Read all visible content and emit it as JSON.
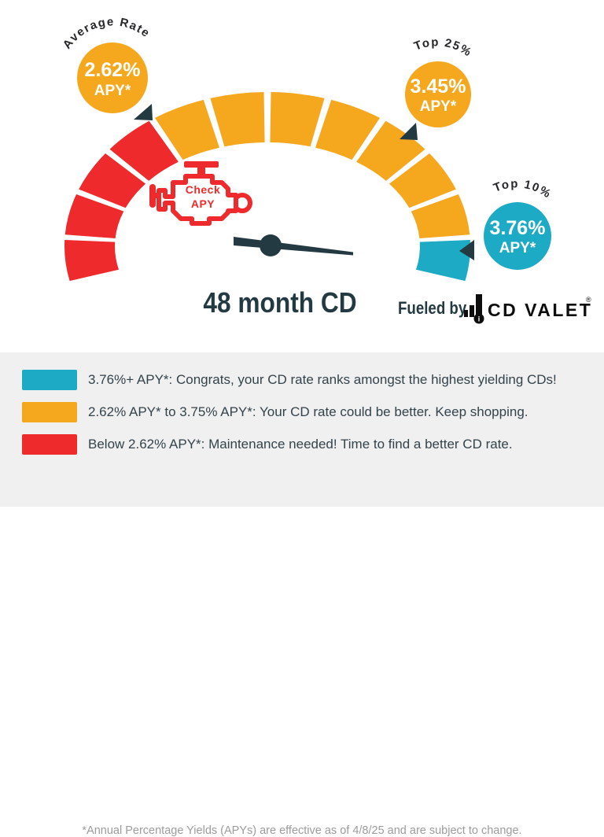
{
  "colors": {
    "red": "#ee2a2c",
    "yellow": "#f5a81e",
    "teal": "#1caac4",
    "dark": "#243a42",
    "text_dark": "#33434b",
    "muted": "#9c9c9c",
    "white": "#ffffff",
    "logo_black": "#0d0d0d",
    "panel_bg": "#f0f0f0"
  },
  "gauge": {
    "title": "48 month CD",
    "segments": [
      "red",
      "red",
      "red",
      "red",
      "yellow",
      "yellow",
      "yellow",
      "yellow",
      "yellow",
      "yellow",
      "yellow",
      "teal"
    ],
    "start_angle": 193,
    "end_angle": -13,
    "gap_deg": 2,
    "check_engine": {
      "line1": "Check",
      "line2": "APY"
    }
  },
  "callouts": {
    "average": {
      "label": "Average Rate",
      "value": "2.62%",
      "unit": "APY*"
    },
    "top25": {
      "label": "Top 25%",
      "value": "3.45%",
      "unit": "APY*"
    },
    "top10": {
      "label": "Top 10%",
      "value": "3.76%",
      "unit": "APY*"
    }
  },
  "branding": {
    "fueled_by": "Fueled by",
    "logo_text": "CD VALET",
    "registered": "®"
  },
  "legend": {
    "items": [
      {
        "color": "teal",
        "text": "3.76%+ APY*: Congrats, your CD rate ranks amongst the highest yielding CDs!"
      },
      {
        "color": "yellow",
        "text": "2.62% APY* to 3.75% APY*: Your CD rate could be better. Keep shopping."
      },
      {
        "color": "red",
        "text": "Below 2.62% APY*: Maintenance needed! Time to find a better CD rate."
      }
    ],
    "footnote": "*Annual Percentage Yields (APYs) are effective as of 4/8/25 and are subject to change."
  },
  "chart_data": {
    "type": "pie",
    "subtype": "half-donut-gauge",
    "title": "48 month CD",
    "arc_degrees": [
      193,
      -13
    ],
    "segments": [
      {
        "label": "Below 2.62% APY*",
        "color": "red",
        "segment_count": 4
      },
      {
        "label": "2.62% APY* to 3.75% APY*",
        "color": "yellow",
        "segment_count": 7
      },
      {
        "label": "3.76%+ APY*",
        "color": "teal",
        "segment_count": 1
      }
    ],
    "markers": [
      {
        "label": "Average Rate",
        "value": "2.62% APY*"
      },
      {
        "label": "Top 25%",
        "value": "3.45% APY*"
      },
      {
        "label": "Top 10%",
        "value": "3.76% APY*"
      }
    ],
    "needle_points_to": "3.76%+ APY* (teal zone)",
    "legend_position": "bottom"
  }
}
